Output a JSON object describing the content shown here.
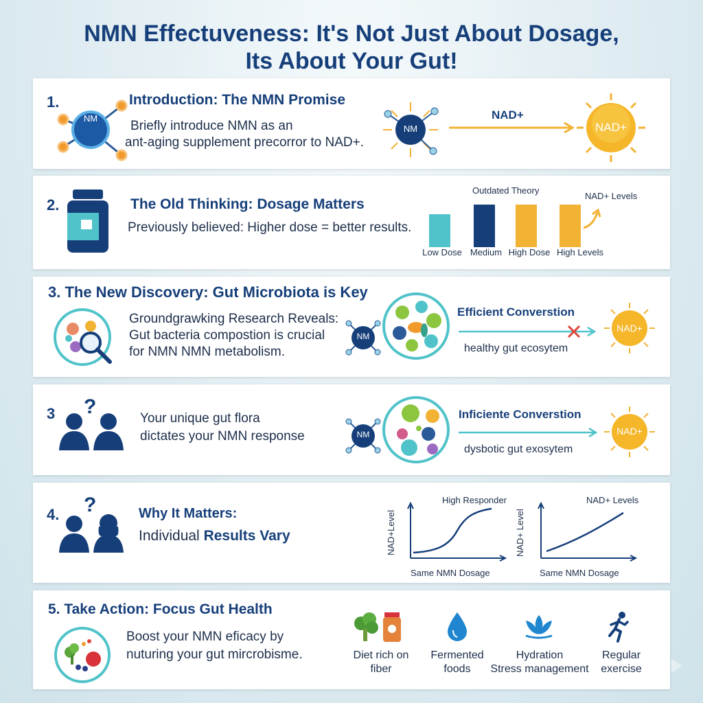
{
  "title": {
    "line1": "NMN Effectuveness: It's Not Just About Dosage,",
    "line2": "Its About Your Gut!"
  },
  "colors": {
    "navy": "#163f7a",
    "teal": "#4fc3c9",
    "gold": "#f2b233",
    "orange": "#f29a2e",
    "red": "#e0453a"
  },
  "section1": {
    "number": "1.",
    "heading": "Introduction: The NMN Promise",
    "body_line1": "Briefly introduce NMN as an",
    "body_line2": "ant-aging supplement precorror to NAD+.",
    "icon_molecule_label": "NM",
    "diagram_start": "NM",
    "arrow_label": "NAD+",
    "diagram_end": "NAD+"
  },
  "section2": {
    "number": "2.",
    "heading": "The Old Thinking: Dosage Matters",
    "body": "Previously believed: Higher dose = better results.",
    "chart_title": "Outdated Theory",
    "chart_side_label": "NAD+ Levels",
    "bar_labels": [
      "Low Dose",
      "Medium",
      "High Dose",
      "High Levels"
    ]
  },
  "section3": {
    "number_heading": "3. The New Discovery: Gut Microbiota is Key",
    "body_line1": "Groundgrawking Research Reveals:",
    "body_line2": "Gut bacteria compostion is crucial",
    "body_line3": "for NMN NMN metabolism.",
    "molecule_label": "NM",
    "conversion_label": "Efficient Converstion",
    "ecosystem_label": "healthy gut ecosytem",
    "end_label": "NAD+"
  },
  "section3b": {
    "number": "3",
    "question_mark": "?",
    "body_line1": "Your unique gut flora",
    "body_line2": "dictates your NMN response",
    "molecule_label": "NM",
    "conversion_label": "Inficiente Converstion",
    "ecosystem_label": "dysbotic gut exosytem",
    "end_label": "NAD+"
  },
  "section4": {
    "number": "4.",
    "question_mark": "?",
    "heading": "Why It Matters:",
    "body_prefix": "Individual ",
    "body_bold": "Results Vary",
    "chart1": {
      "title": "High Responder",
      "ylabel": "NAD+Level",
      "xlabel": "Same NMN Dosage"
    },
    "chart2": {
      "title": "NAD+ Levels",
      "ylabel": "NAD+ Level",
      "xlabel": "Same NMN Dosage"
    }
  },
  "section5": {
    "number_heading": "5. Take Action: Focus Gut Health",
    "body_line1": "Boost your NMN eficacy by",
    "body_line2": "nuturing your gut mircrobisme.",
    "actions": [
      {
        "line1": "Diet rich on",
        "line2": "fiber"
      },
      {
        "line1": "Fermented",
        "line2": "foods"
      },
      {
        "line1": "Hydration",
        "line2": "Stress management"
      },
      {
        "line1": "Regular",
        "line2": "exercise"
      }
    ]
  }
}
